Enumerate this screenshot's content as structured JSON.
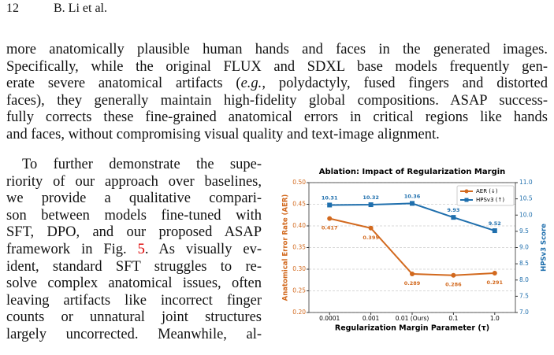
{
  "header": {
    "page_number": "12",
    "authors": "B. Li et al."
  },
  "paragraphs": [
    {
      "lines": [
        [
          "more anatomically plausible human hands and faces in the generated images."
        ],
        [
          "Specifically, while the original FLUX and SDXL base models frequently gen-"
        ],
        [
          "erate severe anatomical artifacts (",
          "e.g.",
          ", polydactyly, fused fingers and distorted"
        ],
        [
          "faces), they generally maintain high-fidelity global compositions. ASAP success-"
        ],
        [
          "fully corrects these fine-grained anatomical errors in critical regions like hands"
        ],
        [
          "and faces, without compromising visual quality and text-image alignment."
        ]
      ]
    },
    {
      "lines": [
        [
          "To further demonstrate the supe-"
        ],
        [
          "riority of our approach over baselines,"
        ],
        [
          "we provide a qualitative compari-"
        ],
        [
          "son between models fine-tuned with"
        ],
        [
          "SFT, DPO, and our proposed ASAP"
        ],
        [
          "framework in Fig. ",
          "5",
          ". As visually ev-"
        ],
        [
          "ident, standard SFT struggles to re-"
        ],
        [
          "solve complex anatomical issues, often"
        ],
        [
          "leaving artifacts like incorrect finger"
        ],
        [
          "counts or unnatural joint structures"
        ],
        [
          "largely uncorrected. Meanwhile, al-"
        ]
      ]
    }
  ],
  "chart_data": {
    "type": "line",
    "title": "Ablation: Impact of Regularization Margin",
    "x_label": "Regularization Margin Parameter (τ)",
    "y_label": "Anatomical Error Rate (AER)",
    "y2_label": "HPSv3 Score",
    "categories": [
      "0.0001",
      "0.001",
      "0.01 (Ours)",
      "0.1",
      "1.0"
    ],
    "series": [
      {
        "name": "AER (↓)",
        "color": "#d2691e",
        "values": [
          0.417,
          0.395,
          0.289,
          0.286,
          0.291
        ]
      },
      {
        "name": "HPSv3 (↑)",
        "color": "#1f6fad",
        "axis": "y2",
        "values": [
          10.31,
          10.32,
          10.36,
          9.93,
          9.52
        ]
      }
    ],
    "ylim": [
      0.2,
      0.5
    ],
    "yticks": [
      {
        "value": 0.2,
        "label": "0.20"
      },
      {
        "value": 0.25,
        "label": "0.25"
      },
      {
        "value": 0.3,
        "label": "0.30"
      },
      {
        "value": 0.35,
        "label": "0.35"
      },
      {
        "value": 0.4,
        "label": "0.40"
      },
      {
        "value": 0.45,
        "label": "0.45"
      },
      {
        "value": 0.5,
        "label": "0.50"
      }
    ],
    "y2lim": [
      7,
      11
    ],
    "y2ticks": [
      {
        "value": 7,
        "label": "7.0"
      },
      {
        "value": 7.5,
        "label": "7.5"
      },
      {
        "value": 8,
        "label": "8.0"
      },
      {
        "value": 8.5,
        "label": "8.5"
      },
      {
        "value": 9,
        "label": "9.0"
      },
      {
        "value": 9.5,
        "label": "9.5"
      },
      {
        "value": 10,
        "label": "10.0"
      },
      {
        "value": 10.5,
        "label": "10.5"
      },
      {
        "value": 11,
        "label": "11.0"
      }
    ],
    "grid": true,
    "legend": "upper right"
  }
}
